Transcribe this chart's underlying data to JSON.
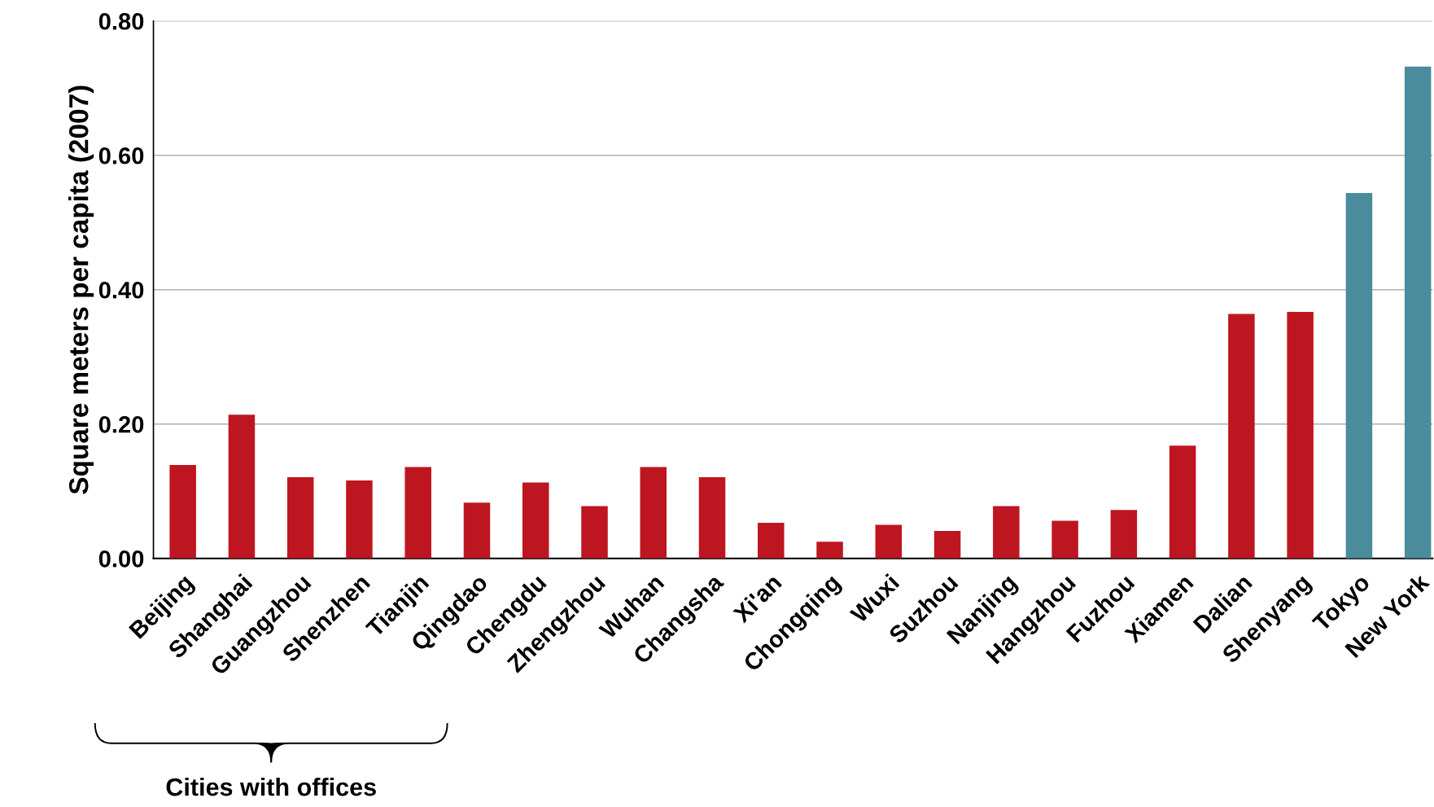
{
  "chart_data": {
    "type": "bar",
    "ylabel": "Square meters per capita (2007)",
    "categories": [
      "Beijing",
      "Shanghai",
      "Guangzhou",
      "Shenzhen",
      "Tianjin",
      "Qingdao",
      "Chengdu",
      "Zhengzhou",
      "Wuhan",
      "Changsha",
      "Xi'an",
      "Chongqing",
      "Wuxi",
      "Suzhou",
      "Nanjing",
      "Hangzhou",
      "Fuzhou",
      "Xiamen",
      "Dalian",
      "Shenyang",
      "Tokyo",
      "New York"
    ],
    "values": [
      0.139,
      0.214,
      0.121,
      0.116,
      0.136,
      0.083,
      0.113,
      0.078,
      0.136,
      0.121,
      0.053,
      0.025,
      0.05,
      0.041,
      0.078,
      0.056,
      0.072,
      0.168,
      0.364,
      0.367,
      0.544,
      0.732
    ],
    "colors": [
      "#be1621",
      "#be1621",
      "#be1621",
      "#be1621",
      "#be1621",
      "#be1621",
      "#be1621",
      "#be1621",
      "#be1621",
      "#be1621",
      "#be1621",
      "#be1621",
      "#be1621",
      "#be1621",
      "#be1621",
      "#be1621",
      "#be1621",
      "#be1621",
      "#be1621",
      "#be1621",
      "#4a8c9c",
      "#4a8c9c"
    ],
    "ylim": [
      0,
      0.8
    ],
    "yticks": [
      {
        "value": 0,
        "label": "0.00"
      },
      {
        "value": 0.2,
        "label": "0.20"
      },
      {
        "value": 0.4,
        "label": "0.40"
      },
      {
        "value": 0.6,
        "label": "0.60"
      },
      {
        "value": 0.8,
        "label": "0.80"
      }
    ],
    "grid": "y",
    "legend": false,
    "annotations": [
      "Cities with offices"
    ]
  }
}
